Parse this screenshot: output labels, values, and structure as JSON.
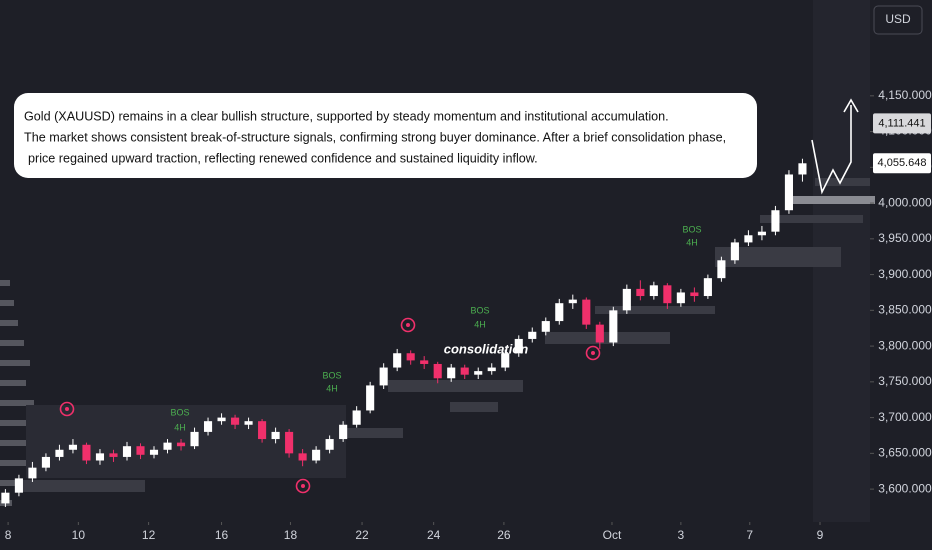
{
  "chart_data": {
    "type": "candlestick",
    "currency": "USD",
    "note": [
      "Gold (XAUUSD) remains in a clear bullish structure, supported by steady momentum and institutional accumulation.",
      "The market shows consistent break-of-structure signals, confirming strong buyer dominance. After a brief consolidation phase,",
      "price regained upward traction, reflecting renewed confidence and sustained liquidity inflow."
    ],
    "annotations": [
      {
        "lines": [
          "BOS",
          "4H"
        ]
      },
      {
        "lines": [
          "BOS",
          "4H"
        ]
      },
      {
        "lines": [
          "BOS",
          "4H"
        ]
      },
      {
        "lines": [
          "BOS",
          "4H"
        ]
      },
      {
        "lines": [
          "consolidation"
        ]
      }
    ],
    "price_labels": [
      {
        "value": 4111.441,
        "label": "4,111.441"
      },
      {
        "value": 4055.648,
        "label": "4,055.648"
      }
    ],
    "up_color": "#ffffff",
    "down_color": "#f0306b",
    "xlim": [
      -0.4,
      64
    ],
    "xticks": [
      {
        "value": 0.2,
        "label": "8"
      },
      {
        "value": 5.4,
        "label": "10"
      },
      {
        "value": 10.6,
        "label": "12"
      },
      {
        "value": 16,
        "label": "16"
      },
      {
        "value": 21.1,
        "label": "18"
      },
      {
        "value": 26.4,
        "label": "22"
      },
      {
        "value": 31.7,
        "label": "24"
      },
      {
        "value": 36.9,
        "label": "26"
      },
      {
        "value": 44.9,
        "label": "Oct"
      },
      {
        "value": 50,
        "label": "3"
      },
      {
        "value": 55.1,
        "label": "7"
      },
      {
        "value": 60.3,
        "label": "9"
      }
    ],
    "ylim": [
      3554,
      4284
    ],
    "yticks": [
      {
        "value": 3600,
        "label": "3,600.000"
      },
      {
        "value": 3650,
        "label": "3,650.000"
      },
      {
        "value": 3700,
        "label": "3,700.000"
      },
      {
        "value": 3750,
        "label": "3,750.000"
      },
      {
        "value": 3800,
        "label": "3,800.000"
      },
      {
        "value": 3850,
        "label": "3,850.000"
      },
      {
        "value": 3900,
        "label": "3,900.000"
      },
      {
        "value": 3950,
        "label": "3,950.000"
      },
      {
        "value": 4000,
        "label": "4,000.000"
      },
      {
        "value": 4050,
        "label": "4,050.000"
      },
      {
        "value": 4100,
        "label": "4,100.000"
      },
      {
        "value": 4150,
        "label": "4,150.000"
      }
    ],
    "open": [
      3580,
      3595,
      3615,
      3630,
      3645,
      3655,
      3662,
      3640,
      3650,
      3645,
      3660,
      3648,
      3655,
      3665,
      3660,
      3680,
      3695,
      3700,
      3690,
      3695,
      3670,
      3680,
      3650,
      3640,
      3655,
      3670,
      3690,
      3710,
      3745,
      3770,
      3790,
      3780,
      3775,
      3755,
      3770,
      3760,
      3765,
      3770,
      3790,
      3810,
      3820,
      3835,
      3860,
      3865,
      3830,
      3805,
      3850,
      3880,
      3870,
      3885,
      3860,
      3875,
      3870,
      3895,
      3920,
      3945,
      3955,
      3960,
      3990,
      4040
    ],
    "high": [
      3600,
      3620,
      3638,
      3650,
      3662,
      3670,
      3665,
      3656,
      3655,
      3666,
      3664,
      3660,
      3670,
      3670,
      3686,
      3700,
      3706,
      3704,
      3700,
      3698,
      3686,
      3684,
      3656,
      3660,
      3675,
      3695,
      3716,
      3750,
      3776,
      3796,
      3794,
      3786,
      3778,
      3775,
      3774,
      3770,
      3776,
      3795,
      3815,
      3826,
      3840,
      3866,
      3872,
      3868,
      3834,
      3855,
      3886,
      3892,
      3890,
      3888,
      3880,
      3882,
      3900,
      3925,
      3950,
      3962,
      3968,
      3996,
      4046,
      4062
    ],
    "low": [
      3575,
      3590,
      3610,
      3625,
      3640,
      3650,
      3635,
      3634,
      3638,
      3640,
      3642,
      3643,
      3650,
      3654,
      3656,
      3675,
      3690,
      3684,
      3684,
      3665,
      3664,
      3644,
      3632,
      3636,
      3650,
      3666,
      3686,
      3706,
      3740,
      3765,
      3774,
      3768,
      3748,
      3750,
      3754,
      3754,
      3760,
      3765,
      3785,
      3805,
      3815,
      3830,
      3852,
      3824,
      3796,
      3800,
      3845,
      3864,
      3865,
      3852,
      3855,
      3862,
      3866,
      3890,
      3915,
      3940,
      3948,
      3955,
      3985,
      4030
    ],
    "close": [
      3595,
      3615,
      3630,
      3645,
      3655,
      3662,
      3640,
      3650,
      3645,
      3660,
      3648,
      3655,
      3665,
      3660,
      3680,
      3695,
      3700,
      3690,
      3695,
      3670,
      3680,
      3650,
      3640,
      3655,
      3670,
      3690,
      3710,
      3745,
      3770,
      3790,
      3780,
      3775,
      3755,
      3770,
      3760,
      3765,
      3770,
      3790,
      3810,
      3820,
      3835,
      3860,
      3865,
      3830,
      3805,
      3850,
      3880,
      3870,
      3885,
      3860,
      3875,
      3870,
      3895,
      3920,
      3945,
      3955,
      3960,
      3990,
      4040,
      4055.648
    ]
  }
}
